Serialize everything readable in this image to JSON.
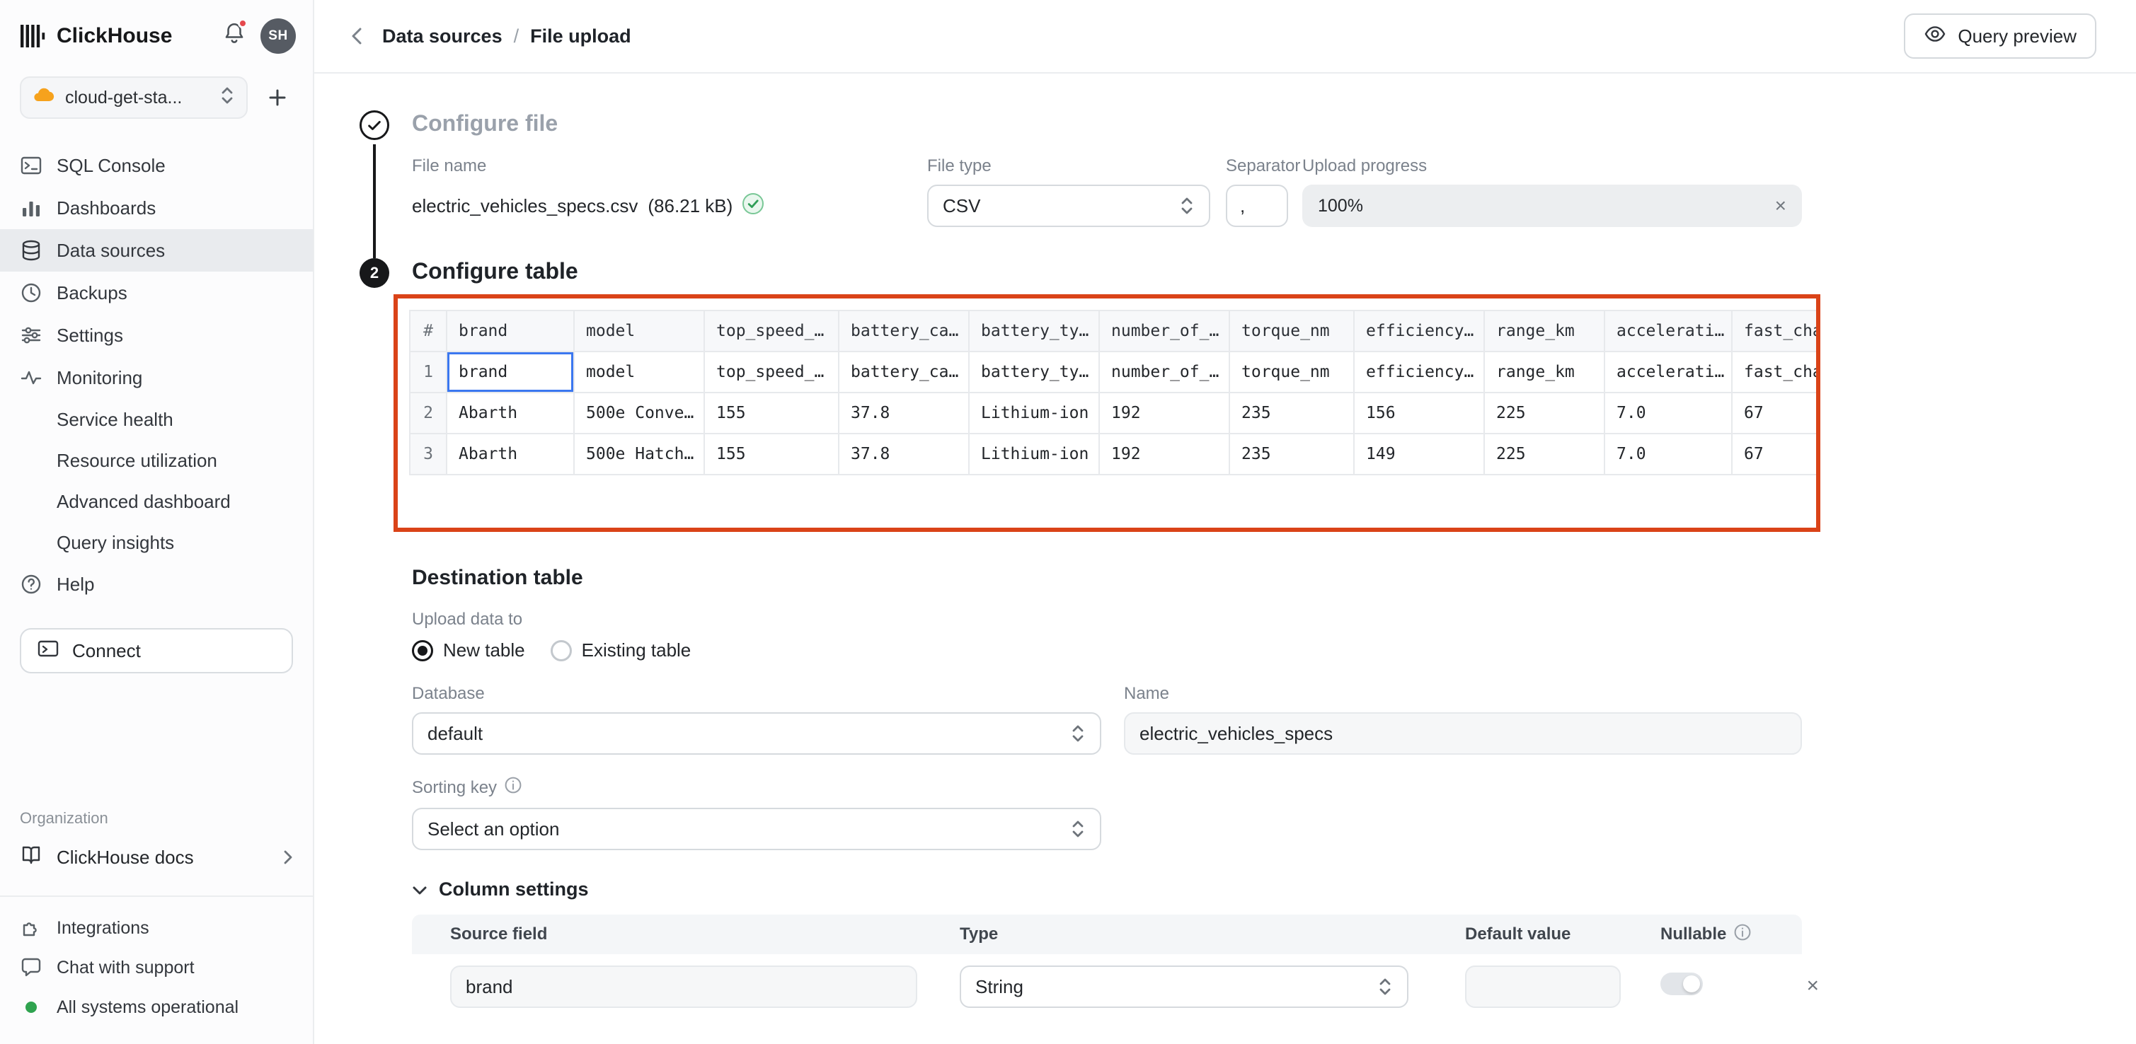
{
  "colors": {
    "accent_red": "#da4318",
    "success_green": "#2f9e57",
    "notification_red": "#e5484d"
  },
  "sidebar": {
    "brand": "ClickHouse",
    "avatar_initials": "SH",
    "service_selector": {
      "icon": "cloud-icon",
      "label": "cloud-get-sta..."
    },
    "nav": [
      {
        "label": "SQL Console",
        "icon": "terminal-icon"
      },
      {
        "label": "Dashboards",
        "icon": "bar-chart-icon"
      },
      {
        "label": "Data sources",
        "icon": "database-icon",
        "selected": true
      },
      {
        "label": "Backups",
        "icon": "clock-icon"
      },
      {
        "label": "Settings",
        "icon": "sliders-icon"
      },
      {
        "label": "Monitoring",
        "icon": "pulse-icon"
      },
      {
        "label": "Service health",
        "indent": true
      },
      {
        "label": "Resource utilization",
        "indent": true
      },
      {
        "label": "Advanced dashboard",
        "indent": true
      },
      {
        "label": "Query insights",
        "indent": true
      },
      {
        "label": "Help",
        "icon": "help-icon"
      }
    ],
    "connect": {
      "label": "Connect",
      "icon": "connect-icon"
    },
    "organization_label": "Organization",
    "docs": {
      "label": "ClickHouse docs",
      "icon": "book-icon"
    },
    "footer": [
      {
        "label": "Integrations",
        "icon": "puzzle-icon"
      },
      {
        "label": "Chat with support",
        "icon": "chat-icon"
      },
      {
        "label": "All systems operational",
        "icon": "status-dot-green"
      }
    ]
  },
  "topbar": {
    "breadcrumb": {
      "items": [
        "Data sources",
        "File upload"
      ],
      "separator": "/"
    },
    "query_preview_label": "Query preview"
  },
  "steps": {
    "step1_state": "done",
    "step2_number": "2"
  },
  "configure_file": {
    "title": "Configure file",
    "fields": {
      "file_name": {
        "label": "File name",
        "value": "electric_vehicles_specs.csv",
        "size": "(86.21 kB)"
      },
      "file_type": {
        "label": "File type",
        "value": "CSV"
      },
      "separator": {
        "label": "Separator",
        "value": ","
      },
      "upload_progress": {
        "label": "Upload progress",
        "value": "100%"
      }
    }
  },
  "configure_table": {
    "title": "Configure table",
    "row_number_header": "#",
    "columns": [
      "brand",
      "model",
      "top_speed_…",
      "battery_ca…",
      "battery_ty…",
      "number_of_…",
      "torque_nm",
      "efficiency…",
      "range_km",
      "accelerati…",
      "fast_cha…"
    ],
    "rows": [
      [
        "brand",
        "model",
        "top_speed_…",
        "battery_ca…",
        "battery_ty…",
        "number_of_…",
        "torque_nm",
        "efficiency…",
        "range_km",
        "accelerati…",
        "fast_cha…"
      ],
      [
        "Abarth",
        "500e Conve…",
        "155",
        "37.8",
        "Lithium-ion",
        "192",
        "235",
        "156",
        "225",
        "7.0",
        "67"
      ],
      [
        "Abarth",
        "500e Hatch…",
        "155",
        "37.8",
        "Lithium-ion",
        "192",
        "235",
        "149",
        "225",
        "7.0",
        "67"
      ]
    ],
    "focused_cell": {
      "row": 0,
      "col": 0
    }
  },
  "destination": {
    "title": "Destination table",
    "upload_data_to_label": "Upload data to",
    "radio_new_table": "New table",
    "radio_existing_table": "Existing table",
    "database": {
      "label": "Database",
      "value": "default"
    },
    "name": {
      "label": "Name",
      "value": "electric_vehicles_specs"
    },
    "sorting_key": {
      "label": "Sorting key",
      "placeholder": "Select an option"
    },
    "column_settings": {
      "title": "Column settings",
      "headers": [
        "Source field",
        "Type",
        "Default value",
        "Nullable"
      ],
      "rows": [
        {
          "source_field": "brand",
          "type": "String",
          "default_value": "",
          "nullable": false
        }
      ]
    }
  }
}
